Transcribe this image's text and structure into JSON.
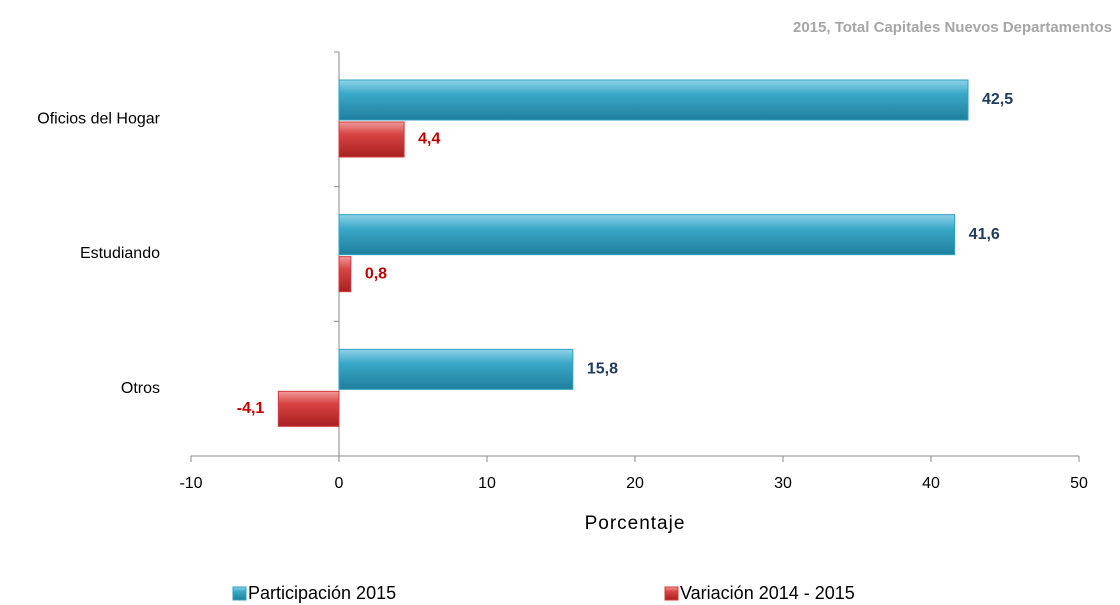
{
  "chart_data": {
    "type": "bar",
    "orientation": "horizontal",
    "title": "2015, Total Capitales Nuevos Departamentos",
    "xlabel": "Porcentaje",
    "categories": [
      "Oficios del Hogar",
      "Estudiando",
      "Otros"
    ],
    "series": [
      {
        "name": "Participación 2015",
        "color": "#2f9fc0",
        "label_color": "#1f3b5e",
        "values": [
          42.5,
          41.6,
          15.8
        ],
        "value_labels": [
          "42,5",
          "41,6",
          "15,8"
        ]
      },
      {
        "name": "Variación 2014 - 2015",
        "color": "#d03a3a",
        "label_color": "#c00000",
        "values": [
          4.4,
          0.8,
          -4.1
        ],
        "value_labels": [
          "4,4",
          "0,8",
          "-4,1"
        ]
      }
    ],
    "xlim": [
      -10,
      50
    ],
    "xticks": [
      -10,
      0,
      10,
      20,
      30,
      40,
      50
    ],
    "grid": false,
    "legend": "bottom"
  }
}
